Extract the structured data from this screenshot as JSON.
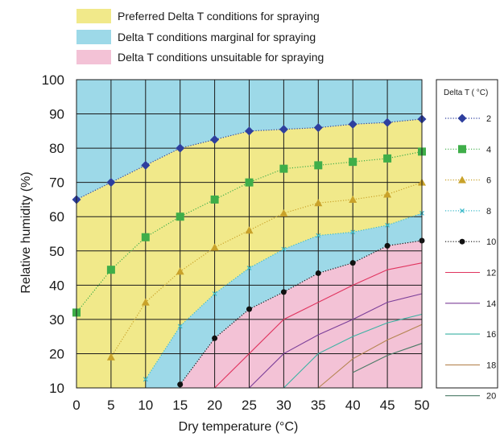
{
  "chart_data": {
    "type": "line",
    "xlabel": "Dry temperature (°C)",
    "ylabel": "Relative humidity (%)",
    "xlim": [
      0,
      50
    ],
    "ylim": [
      10,
      100
    ],
    "x_ticks": [
      "0",
      "5",
      "10",
      "15",
      "20",
      "25",
      "30",
      "35",
      "40",
      "45",
      "50"
    ],
    "y_ticks": [
      "10",
      "20",
      "30",
      "40",
      "50",
      "60",
      "70",
      "80",
      "90",
      "100"
    ],
    "grid": true,
    "zones": [
      {
        "label": "Preferred Delta T conditions for spraying",
        "color": "#f1e98a"
      },
      {
        "label": "Delta T conditions marginal for spraying",
        "color": "#9dd9e8"
      },
      {
        "label": "Delta T conditions unsuitable for spraying",
        "color": "#f3c2d6"
      }
    ],
    "legend_title": "Delta T ( °C)",
    "legend_placement": "right",
    "x": [
      0,
      5,
      10,
      15,
      20,
      25,
      30,
      35,
      40,
      45,
      50
    ],
    "series": [
      {
        "name": "2",
        "color": "#2e3f9e",
        "marker": "diamond",
        "line": "dotted",
        "values": [
          65,
          70,
          75,
          80,
          82.5,
          85,
          85.5,
          86,
          87,
          87.5,
          88.5
        ]
      },
      {
        "name": "4",
        "color": "#3fae49",
        "marker": "square",
        "line": "dotted",
        "values": [
          32,
          44.5,
          54,
          60,
          65,
          70,
          74,
          75,
          76,
          77,
          79
        ]
      },
      {
        "name": "6",
        "color": "#c9a22a",
        "marker": "triangle",
        "line": "dotted",
        "values": [
          null,
          19,
          35,
          44,
          51,
          56,
          61,
          64,
          65,
          66.5,
          70
        ]
      },
      {
        "name": "8",
        "color": "#3ab9c9",
        "marker": "x",
        "line": "dotted",
        "values": [
          null,
          null,
          12.5,
          28,
          37.5,
          45,
          50.5,
          54.5,
          55.5,
          57.5,
          61
        ]
      },
      {
        "name": "10",
        "color": "#111111",
        "marker": "circle",
        "line": "dotted",
        "values": [
          null,
          null,
          null,
          11,
          24.5,
          33,
          38,
          43.5,
          46.5,
          51.5,
          53
        ]
      },
      {
        "name": "12",
        "color": "#e0345f",
        "marker": "none",
        "line": "solid",
        "values": [
          null,
          null,
          null,
          null,
          10,
          20,
          30,
          35,
          40,
          44.5,
          46.5
        ]
      },
      {
        "name": "14",
        "color": "#7b3f99",
        "marker": "none",
        "line": "solid",
        "values": [
          null,
          null,
          null,
          null,
          null,
          10,
          20,
          25.5,
          30,
          35,
          37.5
        ]
      },
      {
        "name": "16",
        "color": "#3ab2a3",
        "marker": "none",
        "line": "solid",
        "values": [
          null,
          null,
          null,
          null,
          null,
          null,
          10,
          20,
          25,
          29,
          31.5
        ]
      },
      {
        "name": "18",
        "color": "#b58552",
        "marker": "none",
        "line": "solid",
        "values": [
          null,
          null,
          null,
          null,
          null,
          null,
          null,
          10,
          18.5,
          24,
          28.5
        ]
      },
      {
        "name": "20",
        "color": "#4a7a66",
        "marker": "none",
        "line": "solid",
        "values": [
          null,
          null,
          null,
          null,
          null,
          null,
          null,
          null,
          14.5,
          19.5,
          23
        ]
      }
    ]
  }
}
